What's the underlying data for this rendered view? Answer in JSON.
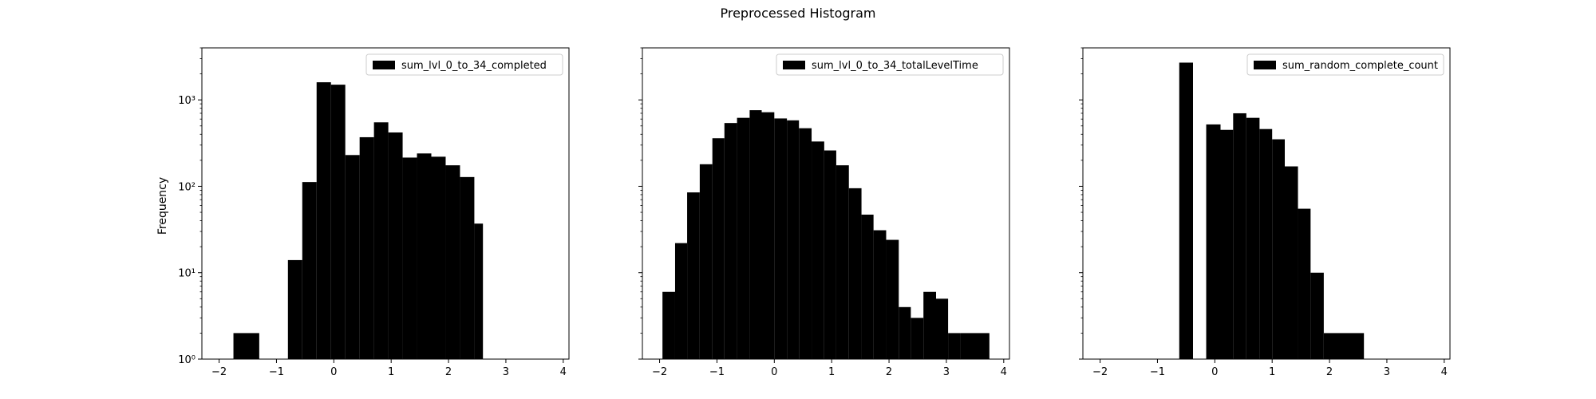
{
  "figure": {
    "title": "Preprocessed Histogram",
    "ylabel": "Frequency"
  },
  "colors": {
    "bar": "#000000",
    "axis": "#000000",
    "background": "#ffffff"
  },
  "chart_data": [
    {
      "type": "bar",
      "subtype": "histogram",
      "legend": "sum_lvl_0_to_34_completed",
      "legend_position": "top-right",
      "yscale": "log",
      "xlim": [
        -2.3,
        4.1
      ],
      "ylim": [
        1,
        4000
      ],
      "xticks": [
        "−2",
        "−1",
        "0",
        "1",
        "2",
        "3",
        "4"
      ],
      "yticks": [
        "10⁰",
        "10¹",
        "10²",
        "10³"
      ],
      "ylabel": "Frequency",
      "bins": [
        {
          "x0": -1.75,
          "x1": -1.3,
          "value": 2
        },
        {
          "x0": -0.8,
          "x1": -0.55,
          "value": 14
        },
        {
          "x0": -0.55,
          "x1": -0.3,
          "value": 112
        },
        {
          "x0": -0.3,
          "x1": -0.05,
          "value": 1600
        },
        {
          "x0": -0.05,
          "x1": 0.2,
          "value": 1500
        },
        {
          "x0": 0.2,
          "x1": 0.45,
          "value": 230
        },
        {
          "x0": 0.45,
          "x1": 0.7,
          "value": 370
        },
        {
          "x0": 0.7,
          "x1": 0.95,
          "value": 550
        },
        {
          "x0": 0.95,
          "x1": 1.2,
          "value": 420
        },
        {
          "x0": 1.2,
          "x1": 1.45,
          "value": 215
        },
        {
          "x0": 1.45,
          "x1": 1.7,
          "value": 240
        },
        {
          "x0": 1.7,
          "x1": 1.95,
          "value": 220
        },
        {
          "x0": 1.95,
          "x1": 2.2,
          "value": 175
        },
        {
          "x0": 2.2,
          "x1": 2.45,
          "value": 128
        },
        {
          "x0": 2.45,
          "x1": 2.6,
          "value": 37
        }
      ]
    },
    {
      "type": "bar",
      "subtype": "histogram",
      "legend": "sum_lvl_0_to_34_totalLevelTime",
      "legend_position": "top-right",
      "yscale": "log",
      "xlim": [
        -2.3,
        4.1
      ],
      "ylim": [
        1,
        4000
      ],
      "xticks": [
        "−2",
        "−1",
        "0",
        "1",
        "2",
        "3",
        "4"
      ],
      "bins": [
        {
          "x0": -1.95,
          "x1": -1.73,
          "value": 6
        },
        {
          "x0": -1.73,
          "x1": -1.52,
          "value": 22
        },
        {
          "x0": -1.52,
          "x1": -1.3,
          "value": 85
        },
        {
          "x0": -1.3,
          "x1": -1.08,
          "value": 180
        },
        {
          "x0": -1.08,
          "x1": -0.87,
          "value": 360
        },
        {
          "x0": -0.87,
          "x1": -0.65,
          "value": 540
        },
        {
          "x0": -0.65,
          "x1": -0.43,
          "value": 620
        },
        {
          "x0": -0.43,
          "x1": -0.22,
          "value": 760
        },
        {
          "x0": -0.22,
          "x1": 0.0,
          "value": 720
        },
        {
          "x0": 0.0,
          "x1": 0.22,
          "value": 610
        },
        {
          "x0": 0.22,
          "x1": 0.43,
          "value": 580
        },
        {
          "x0": 0.43,
          "x1": 0.65,
          "value": 470
        },
        {
          "x0": 0.65,
          "x1": 0.87,
          "value": 330
        },
        {
          "x0": 0.87,
          "x1": 1.08,
          "value": 260
        },
        {
          "x0": 1.08,
          "x1": 1.3,
          "value": 175
        },
        {
          "x0": 1.3,
          "x1": 1.52,
          "value": 95
        },
        {
          "x0": 1.52,
          "x1": 1.73,
          "value": 47
        },
        {
          "x0": 1.73,
          "x1": 1.95,
          "value": 31
        },
        {
          "x0": 1.95,
          "x1": 2.17,
          "value": 24
        },
        {
          "x0": 2.17,
          "x1": 2.38,
          "value": 4
        },
        {
          "x0": 2.38,
          "x1": 2.6,
          "value": 3
        },
        {
          "x0": 2.6,
          "x1": 2.82,
          "value": 6
        },
        {
          "x0": 2.82,
          "x1": 3.03,
          "value": 5
        },
        {
          "x0": 3.03,
          "x1": 3.25,
          "value": 2
        },
        {
          "x0": 3.25,
          "x1": 3.75,
          "value": 2
        }
      ]
    },
    {
      "type": "bar",
      "subtype": "histogram",
      "legend": "sum_random_complete_count",
      "legend_position": "top-right",
      "yscale": "log",
      "xlim": [
        -2.3,
        4.1
      ],
      "ylim": [
        1,
        4000
      ],
      "xticks": [
        "−2",
        "−1",
        "0",
        "1",
        "2",
        "3",
        "4"
      ],
      "bins": [
        {
          "x0": -0.62,
          "x1": -0.38,
          "value": 2700
        },
        {
          "x0": -0.15,
          "x1": 0.1,
          "value": 520
        },
        {
          "x0": 0.1,
          "x1": 0.32,
          "value": 450
        },
        {
          "x0": 0.32,
          "x1": 0.55,
          "value": 700
        },
        {
          "x0": 0.55,
          "x1": 0.78,
          "value": 620
        },
        {
          "x0": 0.78,
          "x1": 1.0,
          "value": 460
        },
        {
          "x0": 1.0,
          "x1": 1.22,
          "value": 350
        },
        {
          "x0": 1.22,
          "x1": 1.45,
          "value": 170
        },
        {
          "x0": 1.45,
          "x1": 1.67,
          "value": 55
        },
        {
          "x0": 1.67,
          "x1": 1.9,
          "value": 10
        },
        {
          "x0": 1.9,
          "x1": 2.6,
          "value": 2
        }
      ]
    }
  ]
}
